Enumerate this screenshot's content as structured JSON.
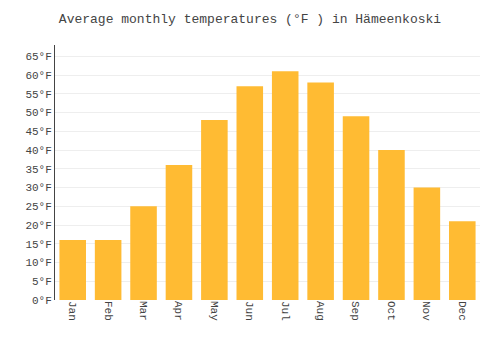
{
  "chart_data": {
    "type": "bar",
    "title": "Average monthly temperatures (°F ) in Hämeenkoski",
    "categories": [
      "Jan",
      "Feb",
      "Mar",
      "Apr",
      "May",
      "Jun",
      "Jul",
      "Aug",
      "Sep",
      "Oct",
      "Nov",
      "Dec"
    ],
    "values": [
      16,
      16,
      25,
      36,
      48,
      57,
      61,
      58,
      49,
      40,
      30,
      21
    ],
    "color": "#FFBB33",
    "ylim": [
      0,
      68
    ],
    "yticks": [
      {
        "value": 0,
        "label": "0°F"
      },
      {
        "value": 5,
        "label": "5°F"
      },
      {
        "value": 10,
        "label": "10°F"
      },
      {
        "value": 15,
        "label": "15°F"
      },
      {
        "value": 20,
        "label": "20°F"
      },
      {
        "value": 25,
        "label": "25°F"
      },
      {
        "value": 30,
        "label": "30°F"
      },
      {
        "value": 35,
        "label": "35°F"
      },
      {
        "value": 40,
        "label": "40°F"
      },
      {
        "value": 45,
        "label": "45°F"
      },
      {
        "value": 50,
        "label": "50°F"
      },
      {
        "value": 55,
        "label": "55°F"
      },
      {
        "value": 60,
        "label": "60°F"
      },
      {
        "value": 65,
        "label": "65°F"
      }
    ],
    "grid": true
  }
}
